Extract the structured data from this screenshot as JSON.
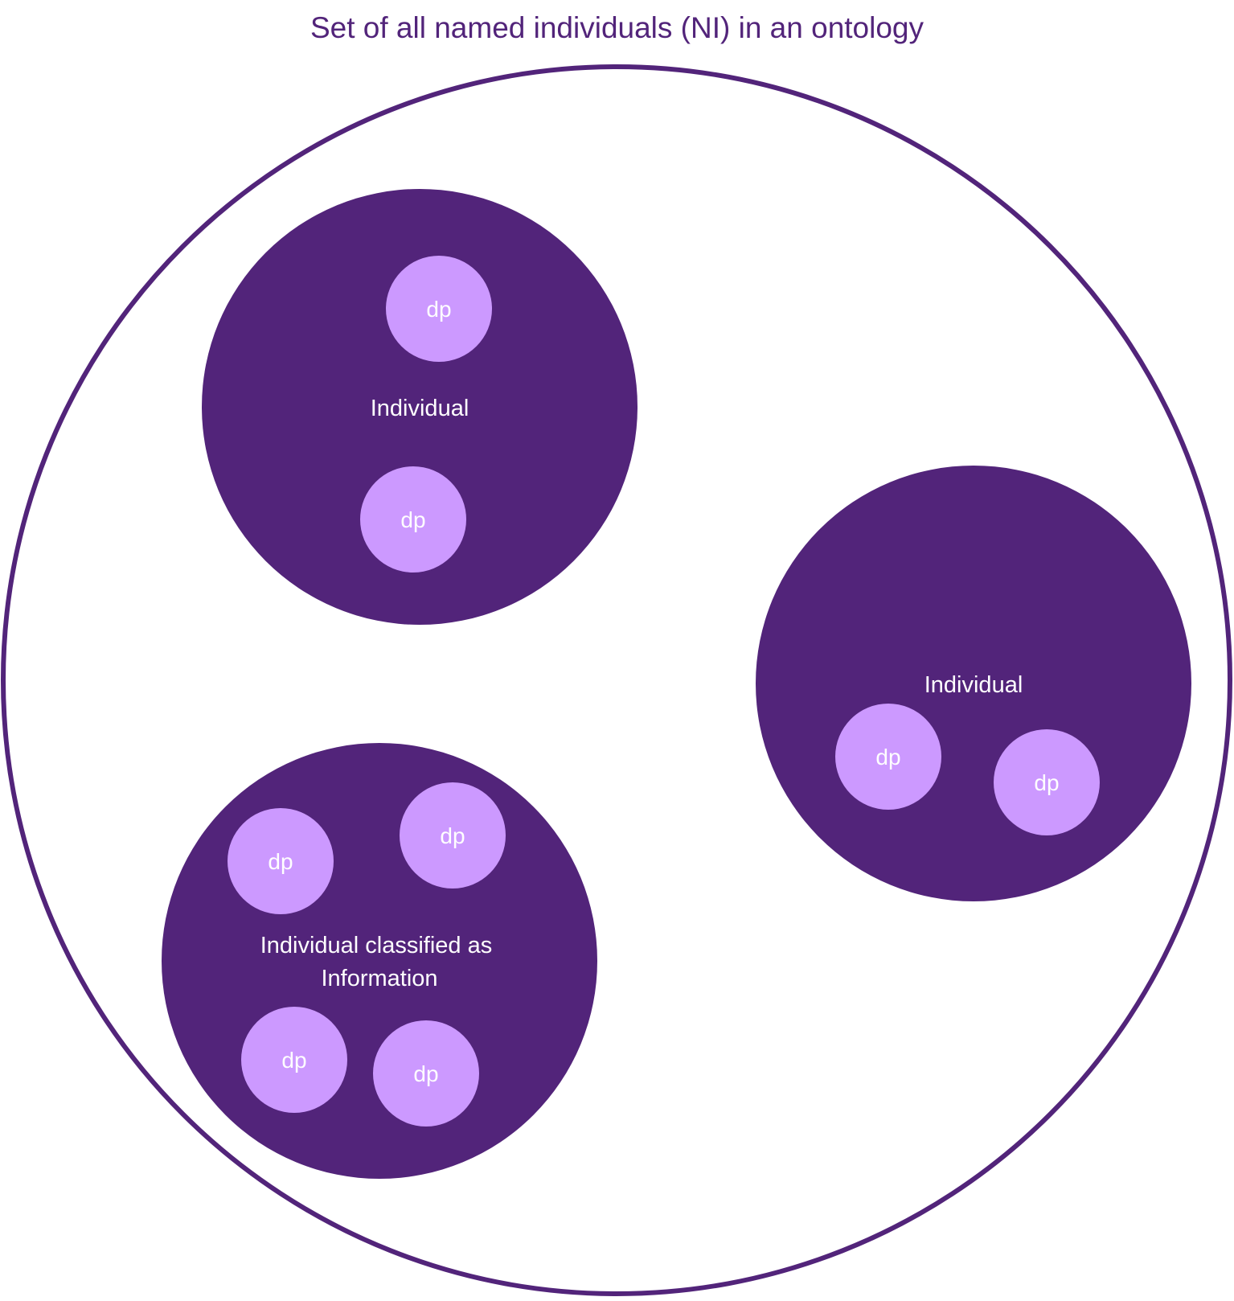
{
  "title": "Set of all named individuals (NI) in an ontology",
  "colors": {
    "outline": "#52247A",
    "individual_fill": "#52247A",
    "dp_fill": "#CC99FF",
    "text_light": "#FFFFFF"
  },
  "individuals": [
    {
      "label_lines": [
        "Individual"
      ],
      "dp_labels": [
        "dp",
        "dp"
      ]
    },
    {
      "label_lines": [
        "Individual"
      ],
      "dp_labels": [
        "dp",
        "dp"
      ]
    },
    {
      "label_lines": [
        "Individual classified as",
        "Information"
      ],
      "dp_labels": [
        "dp",
        "dp",
        "dp",
        "dp"
      ]
    }
  ]
}
